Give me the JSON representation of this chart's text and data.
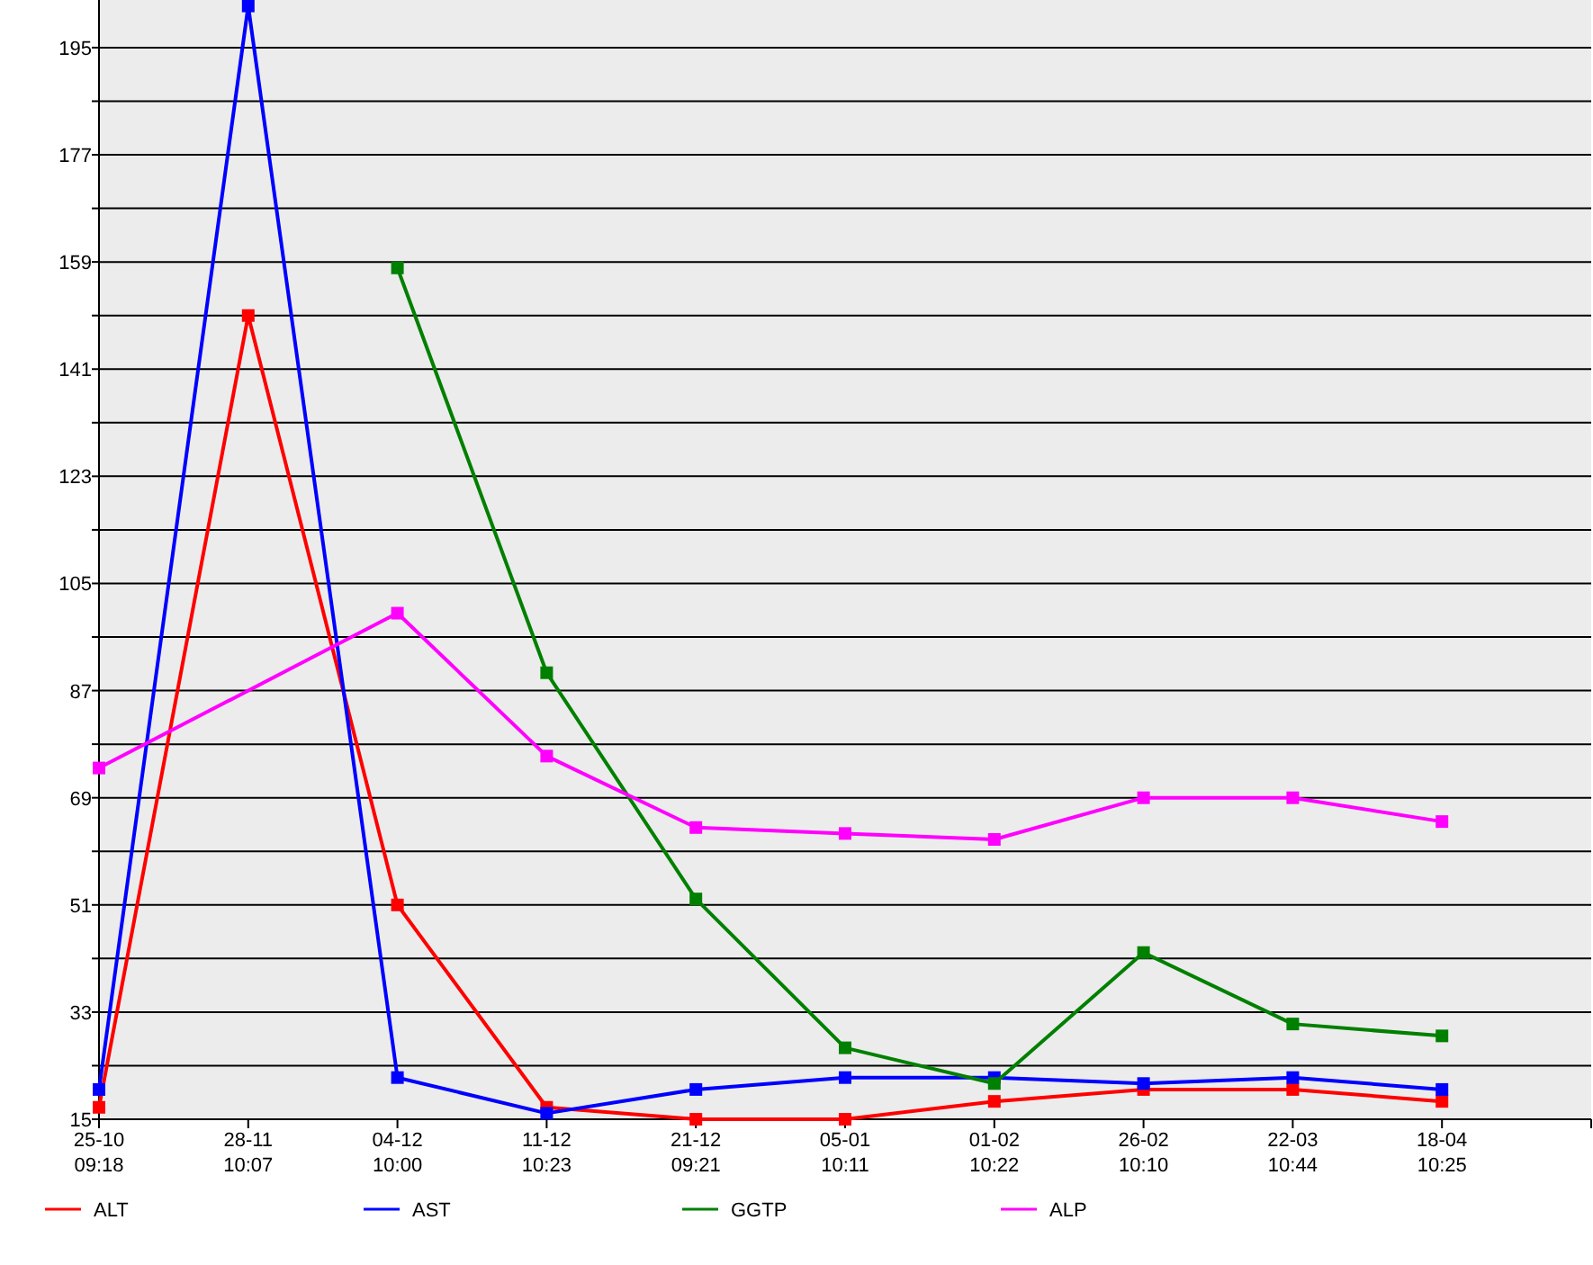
{
  "chart_data": {
    "type": "line",
    "categories": [
      "25-10\n09:18",
      "28-11\n10:07",
      "04-12\n10:00",
      "11-12\n10:23",
      "21-12\n09:21",
      "05-01\n10:11",
      "01-02\n10:22",
      "26-02\n10:10",
      "22-03\n10:44",
      "18-04\n10:25",
      null
    ],
    "series": [
      {
        "name": "ALT",
        "color": "#ff0000",
        "values": [
          17,
          150,
          51,
          17,
          15,
          15,
          18,
          20,
          20,
          18,
          null
        ]
      },
      {
        "name": "AST",
        "color": "#0000ff",
        "values": [
          20,
          202,
          22,
          16,
          20,
          22,
          22,
          21,
          22,
          20,
          null
        ]
      },
      {
        "name": "GGTP",
        "color": "#008000",
        "values": [
          null,
          null,
          158,
          90,
          52,
          27,
          21,
          43,
          31,
          29,
          null
        ]
      },
      {
        "name": "ALP",
        "color": "#ff00ff",
        "values": [
          74,
          null,
          100,
          76,
          64,
          63,
          62,
          69,
          69,
          65,
          null
        ]
      }
    ],
    "ylim": [
      15,
      203
    ],
    "yticks": [
      15,
      {
        "value": 24,
        "label": null
      },
      33,
      {
        "value": 42,
        "label": null
      },
      51,
      {
        "value": 60,
        "label": null
      },
      69,
      {
        "value": 78,
        "label": null
      },
      87,
      {
        "value": 96,
        "label": null
      },
      105,
      {
        "value": 114,
        "label": null
      },
      123,
      {
        "value": 132,
        "label": null
      },
      141,
      {
        "value": 150,
        "label": null
      },
      159,
      {
        "value": 168,
        "label": null
      },
      177,
      {
        "value": 186,
        "label": null
      },
      195
    ],
    "grid": "y",
    "legend": "bottom",
    "marker": "square",
    "line_style": "solid"
  }
}
